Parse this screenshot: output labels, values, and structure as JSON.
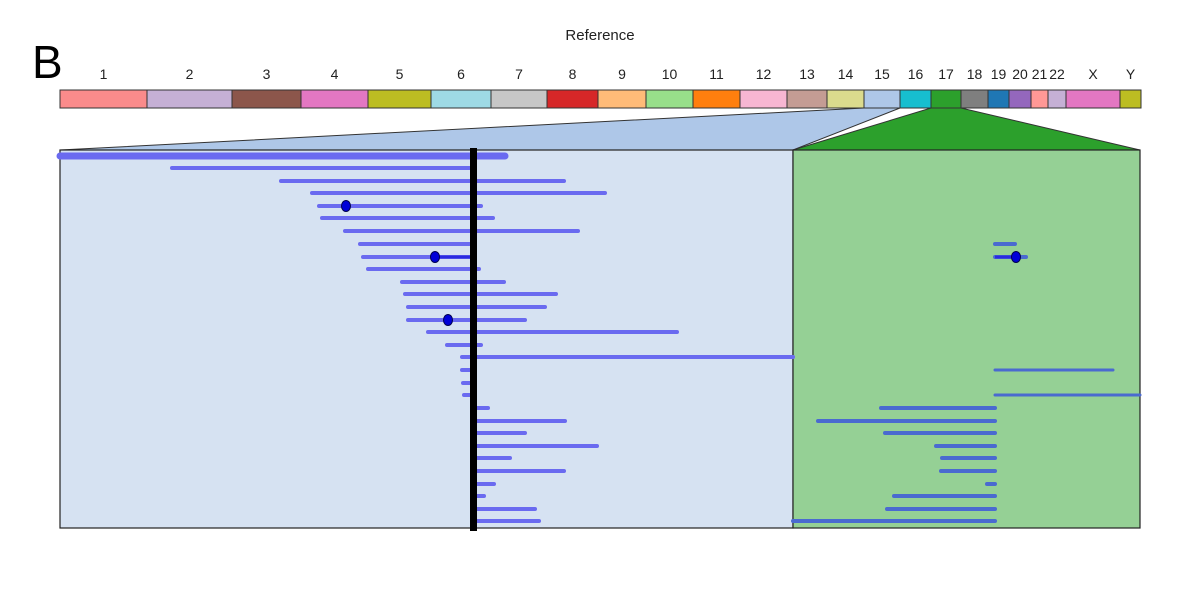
{
  "panel_letter": "B",
  "reference_title": "Reference",
  "chromosomes": [
    {
      "name": "1",
      "color": "#fa8b8b"
    },
    {
      "name": "2",
      "color": "#c5b0d5"
    },
    {
      "name": "3",
      "color": "#8c564b"
    },
    {
      "name": "4",
      "color": "#e377c2"
    },
    {
      "name": "5",
      "color": "#bcbd22"
    },
    {
      "name": "6",
      "color": "#9edae5"
    },
    {
      "name": "7",
      "color": "#c7c7c7"
    },
    {
      "name": "8",
      "color": "#d62728"
    },
    {
      "name": "9",
      "color": "#ffbb78"
    },
    {
      "name": "10",
      "color": "#98df8a"
    },
    {
      "name": "11",
      "color": "#ff7f0e"
    },
    {
      "name": "12",
      "color": "#f7b6d2"
    },
    {
      "name": "13",
      "color": "#c49c94"
    },
    {
      "name": "14",
      "color": "#dbdb8d"
    },
    {
      "name": "15",
      "color": "#aec7e8"
    },
    {
      "name": "16",
      "color": "#17becf"
    },
    {
      "name": "17",
      "color": "#2ca02c"
    },
    {
      "name": "18",
      "color": "#7f7f7f"
    },
    {
      "name": "19",
      "color": "#1f77b4"
    },
    {
      "name": "20",
      "color": "#9467bd"
    },
    {
      "name": "21",
      "color": "#ff9896"
    },
    {
      "name": "22",
      "color": "#c5b0d5"
    },
    {
      "name": "X",
      "color": "#e377c2"
    },
    {
      "name": "Y",
      "color": "#bcbd22"
    }
  ],
  "colors": {
    "left_zoom_fill": "#d6e2f2",
    "left_zoom_trap": "#aec7e8",
    "right_zoom_fill": "#95d095",
    "right_zoom_trap": "#2ca02c",
    "read": "#6a6af0",
    "read_right": "#4a6ad0",
    "point": "#0000d8",
    "breakpoint": "#000000"
  }
}
